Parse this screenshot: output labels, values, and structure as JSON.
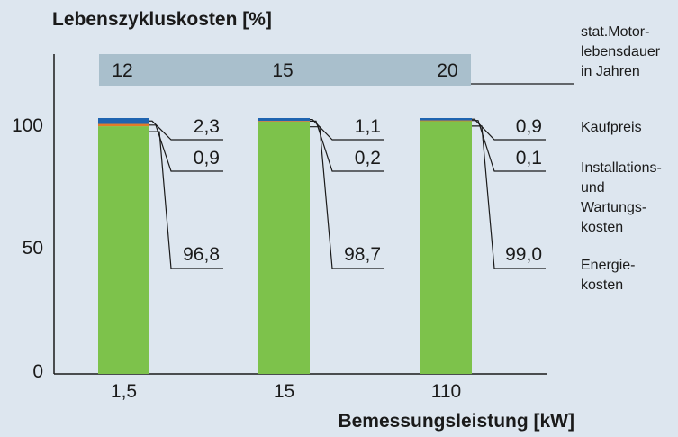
{
  "chart_data": {
    "type": "bar",
    "stacked": true,
    "title": "Lebenszykluskosten [%]",
    "xlabel": "Bemessungsleistung [kW]",
    "ylabel": "",
    "ylim": [
      0,
      125
    ],
    "yticks": [
      "0",
      "50",
      "100"
    ],
    "categories": [
      "1,5",
      "15",
      "110"
    ],
    "lifetime_label": [
      "stat.Motor-",
      "lebensdauer",
      "in Jahren"
    ],
    "lifetime_years": [
      "12",
      "15",
      "20"
    ],
    "series": [
      {
        "name": [
          "Energie-",
          "kosten"
        ],
        "color": "#7dc24b",
        "values": [
          96.8,
          98.7,
          99.0
        ],
        "labels": [
          "96,8",
          "98,7",
          "99,0"
        ]
      },
      {
        "name": [
          "Installations-",
          "und",
          "Wartungs-",
          "kosten"
        ],
        "color": "#e07b2a",
        "values": [
          0.9,
          0.2,
          0.1
        ],
        "labels": [
          "0,9",
          "0,2",
          "0,1"
        ]
      },
      {
        "name": [
          "Kaufpreis"
        ],
        "color": "#1f64b0",
        "values": [
          2.3,
          1.1,
          0.9
        ],
        "labels": [
          "2,3",
          "1,1",
          "0,9"
        ]
      }
    ]
  }
}
